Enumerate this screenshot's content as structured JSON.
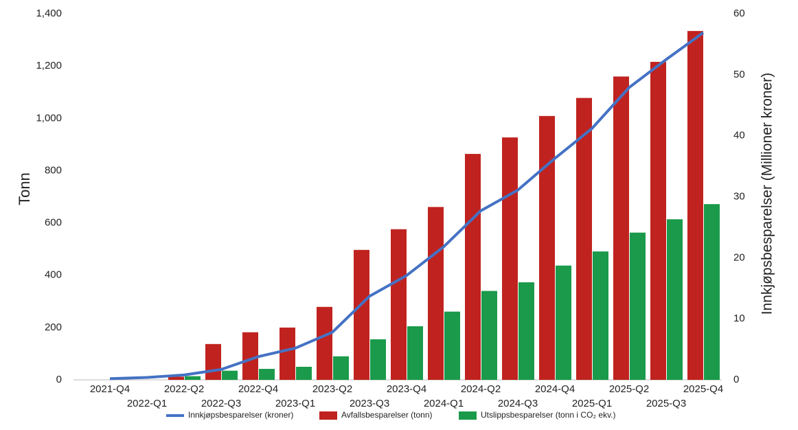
{
  "chart_data": {
    "type": "bar",
    "y_label": "Tonn",
    "y2_label": "Innkjøpsbesparelser (Millioner kroner)",
    "categories": [
      "2021-Q4",
      "2022-Q1",
      "2022-Q2",
      "2022-Q3",
      "2022-Q4",
      "2023-Q1",
      "2023-Q2",
      "2023-Q3",
      "2023-Q4",
      "2024-Q1",
      "2024-Q2",
      "2024-Q3",
      "2024-Q4",
      "2025-Q1",
      "2025-Q2",
      "2025-Q3",
      "2025-Q4"
    ],
    "series": [
      {
        "name": "Innkjøpsbesparelser (kroner)",
        "type": "line",
        "axis": "y2",
        "color": "#4472c4",
        "values": [
          0.2,
          0.4,
          0.8,
          1.7,
          3.8,
          5.2,
          7.8,
          13.7,
          17.1,
          21.8,
          27.7,
          31.1,
          36.3,
          41.2,
          47.9,
          52.5,
          56.9
        ]
      },
      {
        "name": "Avfallsbesparelser (tonn)",
        "type": "bar",
        "color": "#c0231f",
        "values": [
          0,
          0,
          12,
          137,
          182,
          200,
          279,
          497,
          576,
          661,
          864,
          927,
          1009,
          1078,
          1160,
          1216,
          1334
        ]
      },
      {
        "name": "Utslippsbesparelser (tonn i CO₂ ekv.)",
        "type": "bar",
        "color": "#1a9a4a",
        "values": [
          0,
          0,
          14,
          35,
          42,
          50,
          90,
          155,
          205,
          261,
          340,
          373,
          437,
          491,
          563,
          614,
          672
        ]
      }
    ],
    "ylim": [
      0,
      1400
    ],
    "yticks": [
      0,
      200,
      400,
      600,
      800,
      {
        "value": 1000,
        "label": "1,000"
      },
      {
        "value": 1200,
        "label": "1,200"
      },
      {
        "value": 1400,
        "label": "1,400"
      }
    ],
    "y2lim": [
      0,
      60
    ],
    "y2ticks": [
      0,
      10,
      20,
      30,
      40,
      50,
      60
    ]
  }
}
